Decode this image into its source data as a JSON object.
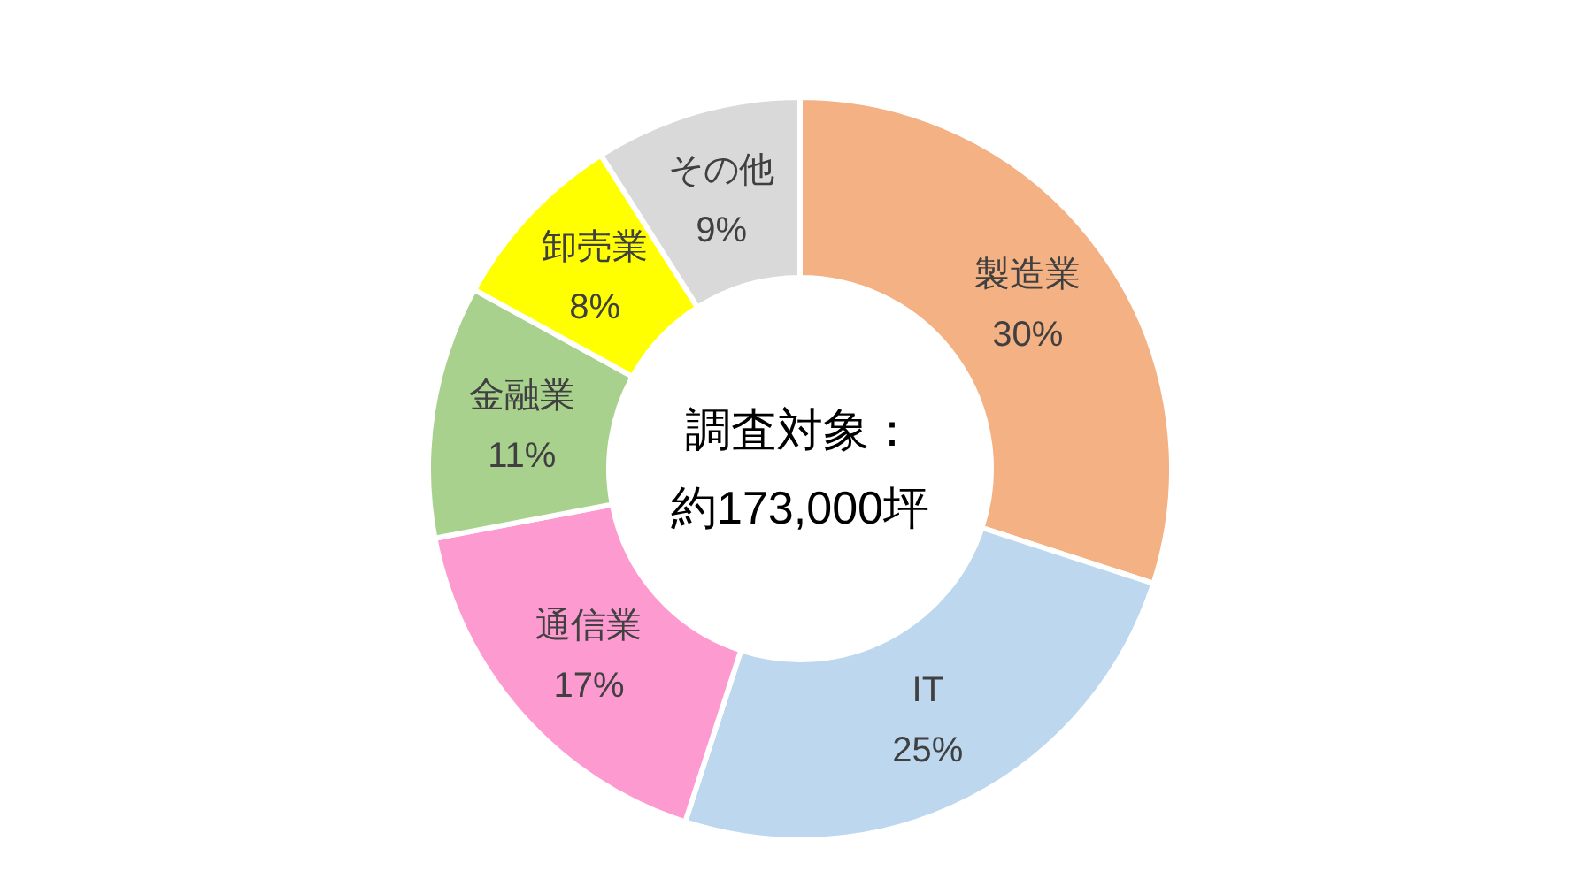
{
  "chart_data": {
    "type": "donut",
    "categories": [
      "製造業",
      "IT",
      "通信業",
      "金融業",
      "卸売業",
      "その他"
    ],
    "values": [
      30,
      25,
      17,
      11,
      8,
      9
    ],
    "colors": [
      "#f4b183",
      "#bdd7ee",
      "#fd9bd0",
      "#a9d18e",
      "#ffff00",
      "#d9d9d9"
    ],
    "value_labels": [
      "30%",
      "25%",
      "17%",
      "11%",
      "8%",
      "9%"
    ],
    "annotations": [
      "調査対象：",
      "約173,000坪"
    ],
    "legend": false
  }
}
